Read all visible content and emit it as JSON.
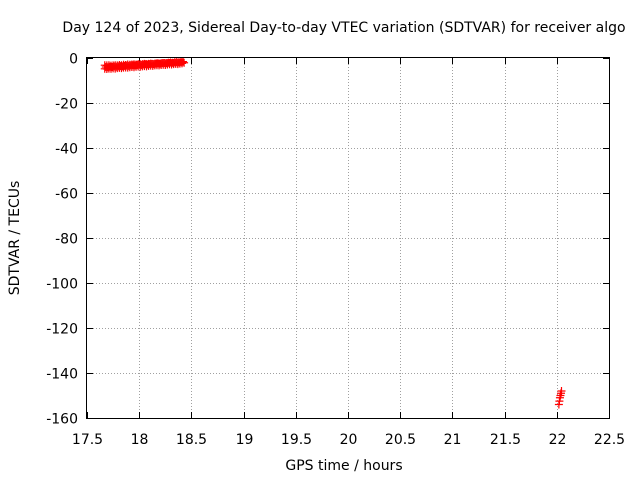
{
  "chart_data": {
    "type": "scatter",
    "title": "Day 124 of 2023, Sidereal Day-to-day VTEC variation (SDTVAR) for receiver algo",
    "xlabel": "GPS time / hours",
    "ylabel": "SDTVAR / TECUs",
    "xlim": [
      17.5,
      22.5
    ],
    "ylim": [
      -160,
      0
    ],
    "xticks": [
      "17.5",
      "18",
      "18.5",
      "19",
      "19.5",
      "20",
      "20.5",
      "21",
      "21.5",
      "22",
      "22.5"
    ],
    "yticks": [
      "0",
      "-20",
      "-40",
      "-60",
      "-80",
      "-100",
      "-120",
      "-140",
      "-160"
    ],
    "grid": true,
    "marker": "+",
    "color": "#ff0000",
    "series": [
      {
        "x": [
          17.67,
          17.69,
          17.71,
          17.73,
          17.75,
          17.77,
          17.79,
          17.81,
          17.83,
          17.85,
          17.87,
          17.89,
          17.91,
          17.93,
          17.95,
          17.97,
          17.99,
          18.01,
          18.03,
          18.05,
          18.07,
          18.09,
          18.11,
          18.13,
          18.15,
          18.17,
          18.19,
          18.21,
          18.23,
          18.25,
          18.27,
          18.29,
          18.31,
          18.33,
          18.35,
          18.37,
          18.39,
          18.41,
          18.43,
          17.67,
          17.69,
          17.71,
          17.73,
          17.75,
          17.77,
          17.79,
          17.81,
          17.83,
          17.85,
          17.87,
          17.89,
          17.91,
          17.93,
          17.95,
          17.97,
          17.99,
          18.01,
          18.03,
          18.05,
          18.07,
          18.09,
          18.11,
          18.13,
          18.15,
          18.17,
          18.19,
          18.21,
          18.23,
          18.25,
          18.27,
          18.29,
          18.31,
          18.33,
          18.35,
          18.37,
          18.39,
          18.41,
          17.68,
          17.7,
          17.72,
          17.74,
          17.76,
          17.78,
          17.8,
          17.82,
          17.84,
          17.86,
          17.88,
          17.9,
          17.92,
          17.94,
          17.96,
          17.98,
          18.0,
          18.02,
          18.04,
          18.06,
          18.08,
          18.1,
          18.12,
          18.14,
          18.16,
          18.18,
          18.2,
          18.22,
          18.24,
          18.26,
          18.28,
          18.3,
          18.32,
          18.34,
          18.36,
          18.38,
          18.4,
          18.42,
          22.02,
          22.025,
          22.03,
          22.035,
          22.04,
          22.045
        ],
        "y": [
          -3.2,
          -3.3,
          -3.2,
          -3.4,
          -3.3,
          -3.2,
          -3.3,
          -3.1,
          -3.2,
          -3.0,
          -3.1,
          -2.9,
          -3.0,
          -2.9,
          -2.8,
          -2.9,
          -2.7,
          -2.8,
          -2.7,
          -2.6,
          -2.7,
          -2.6,
          -2.5,
          -2.6,
          -2.5,
          -2.4,
          -2.5,
          -2.4,
          -2.3,
          -2.4,
          -2.3,
          -2.2,
          -2.3,
          -2.2,
          -2.1,
          -2.2,
          -2.1,
          -2.0,
          -2.1,
          -4.8,
          -4.9,
          -4.7,
          -4.8,
          -4.6,
          -4.7,
          -4.5,
          -4.4,
          -4.5,
          -4.3,
          -4.2,
          -4.3,
          -4.1,
          -4.0,
          -4.1,
          -3.9,
          -3.8,
          -3.9,
          -3.7,
          -3.6,
          -3.7,
          -3.5,
          -3.4,
          -3.5,
          -3.3,
          -3.2,
          -3.3,
          -3.1,
          -3.0,
          -3.1,
          -2.9,
          -2.8,
          -2.9,
          -2.7,
          -2.6,
          -2.7,
          -2.5,
          -2.4,
          -4.0,
          -4.1,
          -3.9,
          -4.0,
          -3.8,
          -3.9,
          -3.7,
          -3.6,
          -3.7,
          -3.5,
          -3.4,
          -3.5,
          -3.3,
          -3.2,
          -3.3,
          -3.1,
          -3.0,
          -3.1,
          -2.9,
          -2.8,
          -2.9,
          -2.7,
          -2.6,
          -2.7,
          -2.5,
          -2.4,
          -2.5,
          -2.3,
          -2.2,
          -2.3,
          -2.1,
          -2.0,
          -2.1,
          -1.9,
          -1.8,
          -1.9,
          -1.7,
          -1.6,
          -154.0,
          -152.5,
          -151.0,
          -150.0,
          -149.0,
          -148.0
        ]
      }
    ]
  }
}
